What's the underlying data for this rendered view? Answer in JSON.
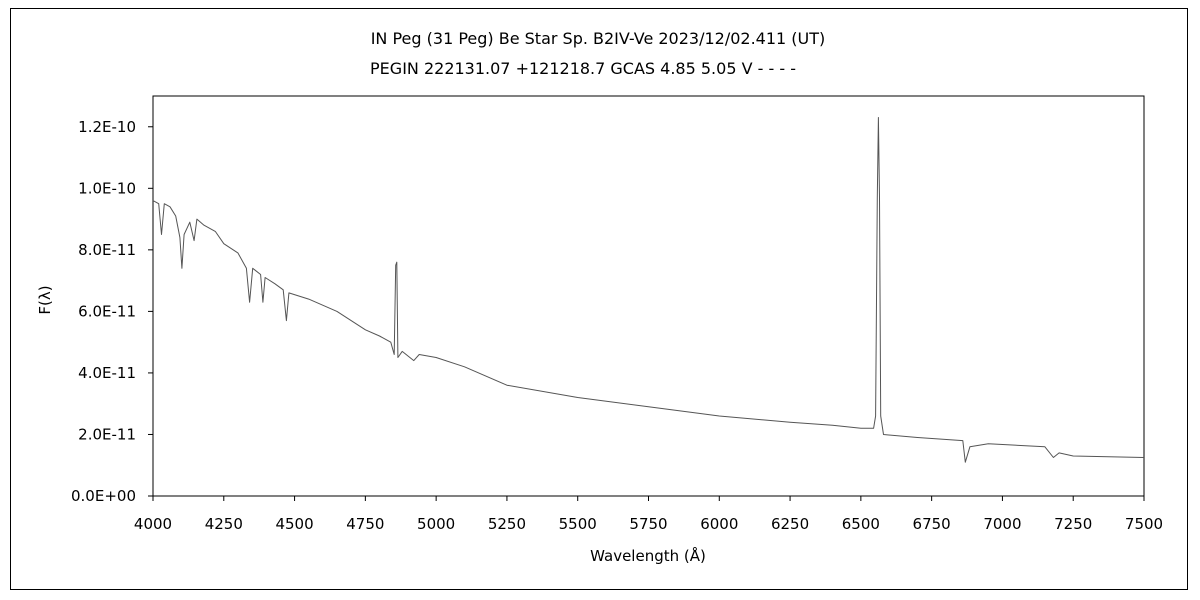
{
  "chart_data": {
    "type": "line",
    "title": "IN Peg (31 Peg)    Be Star    Sp. B2IV-Ve    2023/12/02.411 (UT)",
    "subtitle": "PEGIN 222131.07 +121218.7 GCAS 4.85 5.05 V - - - -",
    "xlabel": "Wavelength (Å)",
    "ylabel": "F(λ)",
    "xlim": [
      4000,
      7500
    ],
    "ylim": [
      0,
      1.3e-10
    ],
    "x_ticks": [
      4000,
      4250,
      4500,
      4750,
      5000,
      5250,
      5500,
      5750,
      6000,
      6250,
      6500,
      6750,
      7000,
      7250,
      7500
    ],
    "x_tick_labels": [
      "4000",
      "4250",
      "4500",
      "4750",
      "5000",
      "5250",
      "5500",
      "5750",
      "6000",
      "6250",
      "6500",
      "6750",
      "7000",
      "7250",
      "7500"
    ],
    "y_ticks": [
      0,
      2e-11,
      4e-11,
      6e-11,
      8e-11,
      1e-10,
      1.2e-10
    ],
    "y_tick_labels": [
      "0.0E+00",
      "2.0E-11",
      "4.0E-11",
      "6.0E-11",
      "8.0E-11",
      "1.0E-10",
      "1.2E-10"
    ],
    "grid": false,
    "legend": "none",
    "series": [
      {
        "color": "#555555",
        "points": [
          [
            4000,
            9.6e-11
          ],
          [
            4020,
            9.5e-11
          ],
          [
            4030,
            8.5e-11
          ],
          [
            4040,
            9.5e-11
          ],
          [
            4060,
            9.4e-11
          ],
          [
            4080,
            9.1e-11
          ],
          [
            4095,
            8.4e-11
          ],
          [
            4102,
            7.4e-11
          ],
          [
            4110,
            8.5e-11
          ],
          [
            4130,
            8.9e-11
          ],
          [
            4145,
            8.3e-11
          ],
          [
            4155,
            9e-11
          ],
          [
            4180,
            8.8e-11
          ],
          [
            4220,
            8.6e-11
          ],
          [
            4250,
            8.2e-11
          ],
          [
            4300,
            7.9e-11
          ],
          [
            4330,
            7.4e-11
          ],
          [
            4341,
            6.3e-11
          ],
          [
            4352,
            7.4e-11
          ],
          [
            4380,
            7.2e-11
          ],
          [
            4388,
            6.3e-11
          ],
          [
            4396,
            7.1e-11
          ],
          [
            4430,
            6.9e-11
          ],
          [
            4460,
            6.7e-11
          ],
          [
            4471,
            5.7e-11
          ],
          [
            4480,
            6.6e-11
          ],
          [
            4550,
            6.4e-11
          ],
          [
            4650,
            6e-11
          ],
          [
            4750,
            5.4e-11
          ],
          [
            4800,
            5.2e-11
          ],
          [
            4840,
            5e-11
          ],
          [
            4852,
            4.6e-11
          ],
          [
            4857,
            7.5e-11
          ],
          [
            4861,
            7.6e-11
          ],
          [
            4865,
            4.5e-11
          ],
          [
            4880,
            4.7e-11
          ],
          [
            4921,
            4.4e-11
          ],
          [
            4940,
            4.6e-11
          ],
          [
            5000,
            4.5e-11
          ],
          [
            5100,
            4.2e-11
          ],
          [
            5250,
            3.6e-11
          ],
          [
            5500,
            3.2e-11
          ],
          [
            5750,
            2.9e-11
          ],
          [
            6000,
            2.6e-11
          ],
          [
            6250,
            2.4e-11
          ],
          [
            6400,
            2.3e-11
          ],
          [
            6500,
            2.2e-11
          ],
          [
            6545,
            2.2e-11
          ],
          [
            6552,
            2.6e-11
          ],
          [
            6558,
            9.7e-11
          ],
          [
            6562,
            1.23e-10
          ],
          [
            6566,
            9.7e-11
          ],
          [
            6570,
            2.6e-11
          ],
          [
            6580,
            2e-11
          ],
          [
            6700,
            1.9e-11
          ],
          [
            6860,
            1.8e-11
          ],
          [
            6869,
            1.1e-11
          ],
          [
            6885,
            1.6e-11
          ],
          [
            6950,
            1.7e-11
          ],
          [
            7150,
            1.6e-11
          ],
          [
            7180,
            1.25e-11
          ],
          [
            7200,
            1.4e-11
          ],
          [
            7250,
            1.3e-11
          ],
          [
            7500,
            1.25e-11
          ]
        ]
      }
    ]
  }
}
